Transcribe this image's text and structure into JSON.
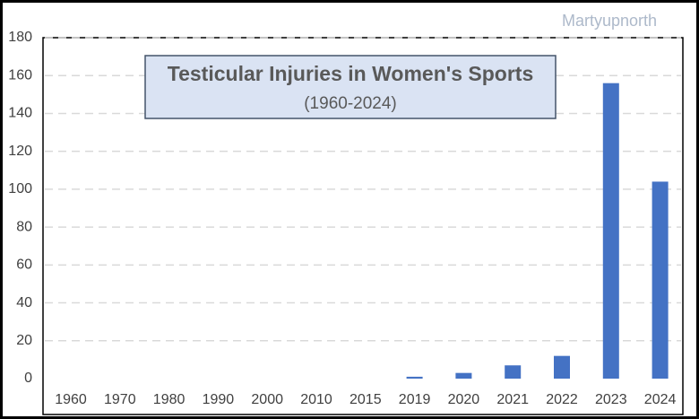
{
  "chart_data": {
    "type": "bar",
    "title": "Testicular Injuries in Women's Sports",
    "subtitle": "(1960-2024)",
    "watermark": "Martyupnorth",
    "categories": [
      "1960",
      "1970",
      "1980",
      "1990",
      "2000",
      "2010",
      "2015",
      "2019",
      "2020",
      "2021",
      "2022",
      "2023",
      "2024"
    ],
    "values": [
      0,
      0,
      0,
      0,
      0,
      0,
      0,
      1,
      3,
      7,
      12,
      156,
      104
    ],
    "color": "#4472c4",
    "ylim": [
      0,
      180
    ],
    "yticks": [
      0,
      20,
      40,
      60,
      80,
      100,
      120,
      140,
      160,
      180
    ],
    "grid": true
  }
}
